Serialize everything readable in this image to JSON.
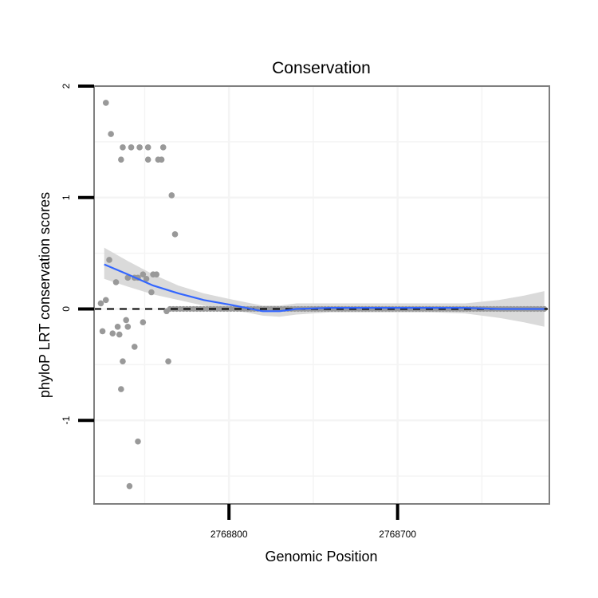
{
  "chart_data": {
    "type": "scatter",
    "title": "Conservation",
    "xlabel": "Genomic Position",
    "ylabel": "phyloP LRT conservation scores",
    "x_reversed": true,
    "xlim": [
      2768880,
      2768610
    ],
    "ylim": [
      -1.75,
      2.0
    ],
    "x_ticks": [
      2768800,
      2768700
    ],
    "x_tick_labels": [
      "2768800",
      "2768700"
    ],
    "y_ticks": [
      -1,
      0,
      1,
      2
    ],
    "y_tick_labels": [
      "-1",
      "0",
      "1",
      "2"
    ],
    "grid": true,
    "reference_line": {
      "y": 0,
      "style": "dashed"
    },
    "colors": {
      "points": "#999999",
      "smooth": "#3366ff",
      "ribbon": "#d3d3d3",
      "panel_border": "#7f7f7f",
      "grid": "#f4f4f4"
    },
    "points": [
      {
        "x": 2768873,
        "y": 1.85
      },
      {
        "x": 2768870,
        "y": 1.57
      },
      {
        "x": 2768863,
        "y": 1.45
      },
      {
        "x": 2768858,
        "y": 1.45
      },
      {
        "x": 2768853,
        "y": 1.45
      },
      {
        "x": 2768848,
        "y": 1.45
      },
      {
        "x": 2768839,
        "y": 1.45
      },
      {
        "x": 2768864,
        "y": 1.34
      },
      {
        "x": 2768848,
        "y": 1.34
      },
      {
        "x": 2768842,
        "y": 1.34
      },
      {
        "x": 2768840,
        "y": 1.34
      },
      {
        "x": 2768834,
        "y": 1.02
      },
      {
        "x": 2768832,
        "y": 0.67
      },
      {
        "x": 2768871,
        "y": 0.44
      },
      {
        "x": 2768851,
        "y": 0.31
      },
      {
        "x": 2768845,
        "y": 0.31
      },
      {
        "x": 2768843,
        "y": 0.31
      },
      {
        "x": 2768860,
        "y": 0.28
      },
      {
        "x": 2768856,
        "y": 0.28
      },
      {
        "x": 2768854,
        "y": 0.28
      },
      {
        "x": 2768849,
        "y": 0.27
      },
      {
        "x": 2768867,
        "y": 0.24
      },
      {
        "x": 2768846,
        "y": 0.15
      },
      {
        "x": 2768873,
        "y": 0.08
      },
      {
        "x": 2768876,
        "y": 0.05
      },
      {
        "x": 2768837,
        "y": -0.02
      },
      {
        "x": 2768861,
        "y": -0.1
      },
      {
        "x": 2768851,
        "y": -0.12
      },
      {
        "x": 2768866,
        "y": -0.16
      },
      {
        "x": 2768860,
        "y": -0.16
      },
      {
        "x": 2768875,
        "y": -0.2
      },
      {
        "x": 2768869,
        "y": -0.22
      },
      {
        "x": 2768865,
        "y": -0.23
      },
      {
        "x": 2768856,
        "y": -0.34
      },
      {
        "x": 2768863,
        "y": -0.47
      },
      {
        "x": 2768836,
        "y": -0.47
      },
      {
        "x": 2768864,
        "y": -0.72
      },
      {
        "x": 2768854,
        "y": -1.19
      },
      {
        "x": 2768859,
        "y": -1.59
      }
    ],
    "zero_run": {
      "x_from": 2768835,
      "x_to": 2768613,
      "step": 2,
      "y": 0
    },
    "smooth": [
      {
        "x": 2768874,
        "y": 0.4,
        "lo": 0.27,
        "hi": 0.55
      },
      {
        "x": 2768860,
        "y": 0.31,
        "lo": 0.2,
        "hi": 0.43
      },
      {
        "x": 2768845,
        "y": 0.21,
        "lo": 0.13,
        "hi": 0.31
      },
      {
        "x": 2768830,
        "y": 0.14,
        "lo": 0.08,
        "hi": 0.21
      },
      {
        "x": 2768815,
        "y": 0.08,
        "lo": 0.03,
        "hi": 0.14
      },
      {
        "x": 2768800,
        "y": 0.04,
        "lo": -0.01,
        "hi": 0.09
      },
      {
        "x": 2768790,
        "y": 0.01,
        "lo": -0.03,
        "hi": 0.06
      },
      {
        "x": 2768780,
        "y": -0.02,
        "lo": -0.06,
        "hi": 0.03
      },
      {
        "x": 2768770,
        "y": -0.02,
        "lo": -0.07,
        "hi": 0.03
      },
      {
        "x": 2768760,
        "y": 0.0,
        "lo": -0.05,
        "hi": 0.05
      },
      {
        "x": 2768740,
        "y": 0.01,
        "lo": -0.03,
        "hi": 0.05
      },
      {
        "x": 2768720,
        "y": 0.01,
        "lo": -0.03,
        "hi": 0.05
      },
      {
        "x": 2768700,
        "y": 0.01,
        "lo": -0.03,
        "hi": 0.05
      },
      {
        "x": 2768680,
        "y": 0.01,
        "lo": -0.03,
        "hi": 0.05
      },
      {
        "x": 2768660,
        "y": 0.01,
        "lo": -0.04,
        "hi": 0.05
      },
      {
        "x": 2768640,
        "y": 0.0,
        "lo": -0.08,
        "hi": 0.08
      },
      {
        "x": 2768625,
        "y": 0.0,
        "lo": -0.12,
        "hi": 0.12
      },
      {
        "x": 2768613,
        "y": 0.0,
        "lo": -0.16,
        "hi": 0.16
      }
    ]
  }
}
